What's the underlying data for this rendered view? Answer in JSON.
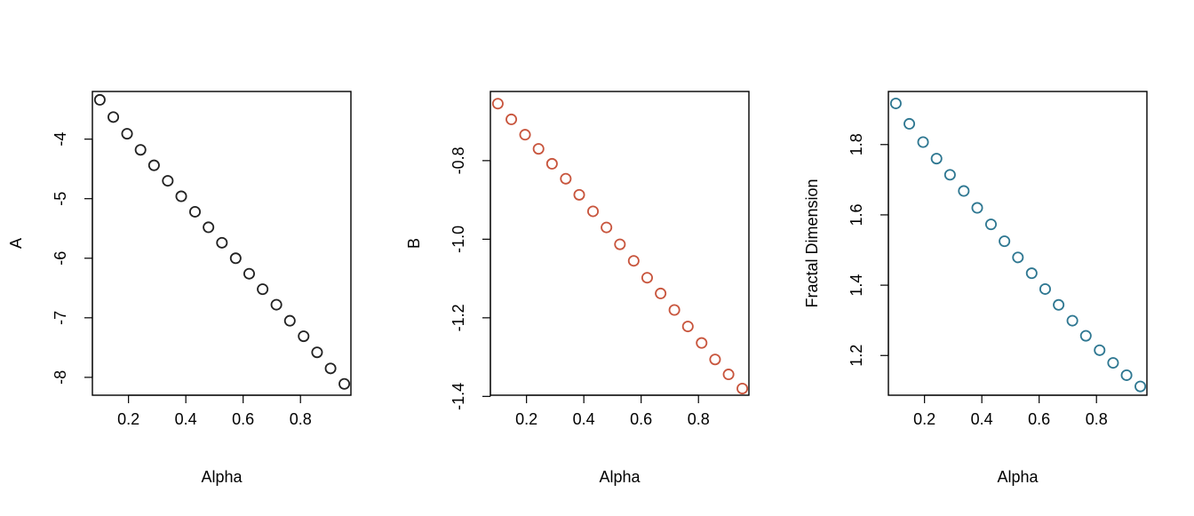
{
  "chart_data": [
    {
      "type": "scatter",
      "xlabel": "Alpha",
      "ylabel": "A",
      "xlim": [
        0.074,
        0.976
      ],
      "ylim": [
        -8.3,
        -3.2
      ],
      "xticks": [
        0.2,
        0.4,
        0.6,
        0.8
      ],
      "xtick_labels": [
        "0.2",
        "0.4",
        "0.6",
        "0.8"
      ],
      "yticks": [
        -4,
        -5,
        -6,
        -7,
        -8
      ],
      "ytick_labels": [
        "-4",
        "-5",
        "-6",
        "-7",
        "-8"
      ],
      "color": "#222222",
      "x": [
        0.1,
        0.147,
        0.195,
        0.242,
        0.289,
        0.337,
        0.384,
        0.432,
        0.479,
        0.526,
        0.574,
        0.621,
        0.668,
        0.716,
        0.763,
        0.811,
        0.858,
        0.905,
        0.953
      ],
      "y": [
        -3.34,
        -3.63,
        -3.91,
        -4.18,
        -4.44,
        -4.7,
        -4.96,
        -5.22,
        -5.48,
        -5.74,
        -6.0,
        -6.26,
        -6.52,
        -6.78,
        -7.05,
        -7.31,
        -7.58,
        -7.85,
        -8.11
      ]
    },
    {
      "type": "scatter",
      "xlabel": "Alpha",
      "ylabel": "B",
      "xlim": [
        0.074,
        0.976
      ],
      "ylim": [
        -1.397,
        -0.624
      ],
      "xticks": [
        0.2,
        0.4,
        0.6,
        0.8
      ],
      "xtick_labels": [
        "0.2",
        "0.4",
        "0.6",
        "0.8"
      ],
      "yticks": [
        -0.8,
        -1.0,
        -1.2,
        -1.4
      ],
      "ytick_labels": [
        "-0.8",
        "-1.0",
        "-1.2",
        "-1.4"
      ],
      "color": "#c8553d",
      "x": [
        0.1,
        0.147,
        0.195,
        0.242,
        0.289,
        0.337,
        0.384,
        0.432,
        0.479,
        0.526,
        0.574,
        0.621,
        0.668,
        0.716,
        0.763,
        0.811,
        0.858,
        0.905,
        0.953
      ],
      "y": [
        -0.655,
        -0.695,
        -0.734,
        -0.77,
        -0.808,
        -0.846,
        -0.887,
        -0.929,
        -0.97,
        -1.013,
        -1.055,
        -1.098,
        -1.138,
        -1.18,
        -1.222,
        -1.264,
        -1.306,
        -1.344,
        -1.38
      ]
    },
    {
      "type": "scatter",
      "xlabel": "Alpha",
      "ylabel": "Fractal Dimension",
      "xlim": [
        0.074,
        0.976
      ],
      "ylim": [
        1.087,
        1.951
      ],
      "xticks": [
        0.2,
        0.4,
        0.6,
        0.8
      ],
      "xtick_labels": [
        "0.2",
        "0.4",
        "0.6",
        "0.8"
      ],
      "yticks": [
        1.2,
        1.4,
        1.6,
        1.8
      ],
      "ytick_labels": [
        "1.2",
        "1.4",
        "1.6",
        "1.8"
      ],
      "color": "#2e7791",
      "x": [
        0.1,
        0.147,
        0.195,
        0.242,
        0.289,
        0.337,
        0.384,
        0.432,
        0.479,
        0.526,
        0.574,
        0.621,
        0.668,
        0.716,
        0.763,
        0.811,
        0.858,
        0.905,
        0.953
      ],
      "y": [
        1.917,
        1.859,
        1.807,
        1.76,
        1.714,
        1.668,
        1.62,
        1.573,
        1.525,
        1.479,
        1.434,
        1.389,
        1.344,
        1.299,
        1.256,
        1.215,
        1.179,
        1.144,
        1.112
      ]
    }
  ]
}
